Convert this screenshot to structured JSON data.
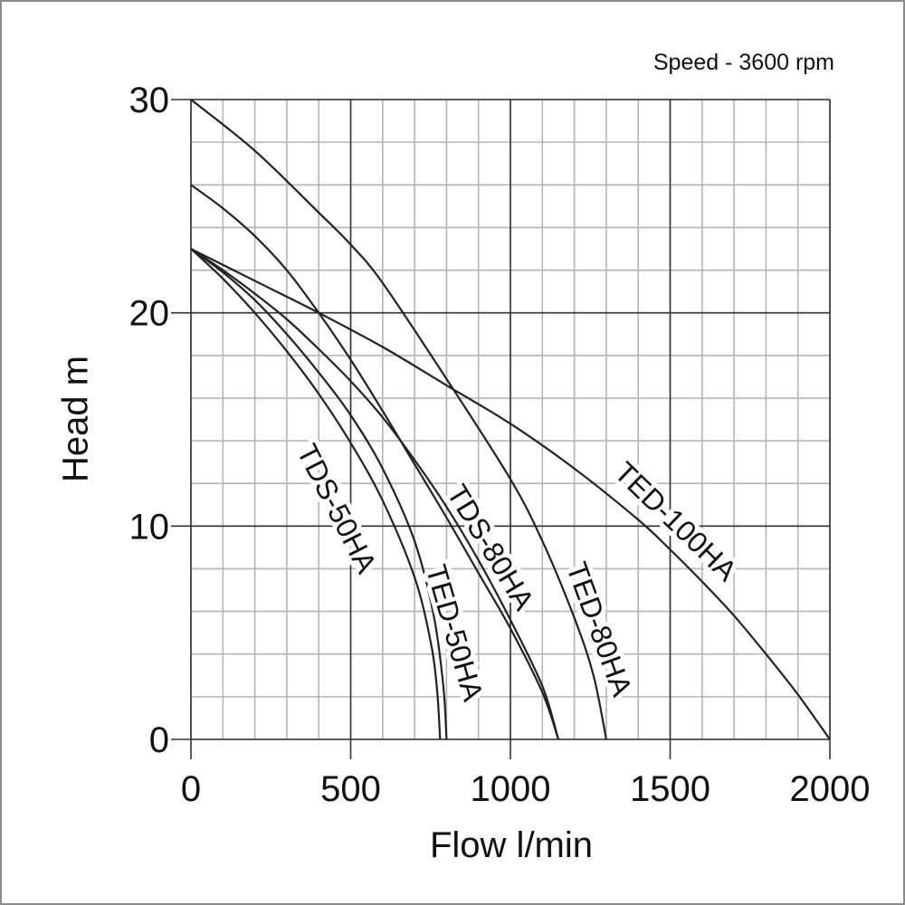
{
  "chart_data": {
    "type": "line",
    "title": "Speed - 3600 rpm",
    "xlabel": "Flow l/min",
    "ylabel": "Head m",
    "xlim": [
      0,
      2000
    ],
    "ylim": [
      0,
      30
    ],
    "x_ticks": [
      0,
      500,
      1000,
      1500,
      2000
    ],
    "y_ticks": [
      0,
      10,
      20,
      30
    ],
    "grid": {
      "minor_x_step": 100,
      "minor_y_step": 2,
      "major_x_step": 500,
      "major_y_step": 10
    },
    "legend": "inline curve labels",
    "series": [
      {
        "name": "TDS-50HA",
        "points": [
          [
            0,
            23
          ],
          [
            100,
            21.6
          ],
          [
            200,
            20.0
          ],
          [
            300,
            18.2
          ],
          [
            400,
            16.2
          ],
          [
            500,
            13.9
          ],
          [
            600,
            11.2
          ],
          [
            700,
            7.6
          ],
          [
            750,
            4.6
          ],
          [
            770,
            2.4
          ],
          [
            780,
            0
          ]
        ],
        "label_pos": {
          "x": 370,
          "y": 13.0,
          "angle": 62
        }
      },
      {
        "name": "TED-50HA",
        "points": [
          [
            0,
            23
          ],
          [
            100,
            21.9
          ],
          [
            200,
            20.6
          ],
          [
            300,
            19.0
          ],
          [
            400,
            17.2
          ],
          [
            500,
            15.2
          ],
          [
            600,
            12.7
          ],
          [
            700,
            9.3
          ],
          [
            760,
            5.8
          ],
          [
            790,
            2.5
          ],
          [
            800,
            0
          ]
        ],
        "label_pos": {
          "x": 850,
          "y": 5.5,
          "angle": 74
        }
      },
      {
        "name": "TDS-80HA",
        "points": [
          [
            0,
            23
          ],
          [
            100,
            22.0
          ],
          [
            200,
            20.9
          ],
          [
            300,
            19.7
          ],
          [
            400,
            18.3
          ],
          [
            500,
            16.8
          ],
          [
            600,
            15.1
          ],
          [
            700,
            13.1
          ],
          [
            800,
            10.9
          ],
          [
            900,
            8.4
          ],
          [
            1000,
            5.6
          ],
          [
            1100,
            2.5
          ],
          [
            1150,
            0
          ]
        ],
        "label_pos": {
          "x": 1020,
          "y": 9.5,
          "angle": 60
        }
      },
      {
        "name": "TED-80HA",
        "points": [
          [
            0,
            26
          ],
          [
            100,
            25.0
          ],
          [
            200,
            23.8
          ],
          [
            300,
            22.2
          ],
          [
            400,
            20.2
          ],
          [
            500,
            18.0
          ],
          [
            600,
            15.7
          ],
          [
            700,
            13.3
          ],
          [
            800,
            10.9
          ],
          [
            900,
            8.3
          ],
          [
            1000,
            5.6
          ],
          [
            1100,
            2.9
          ],
          [
            1200,
            1.2
          ],
          [
            1150,
            0
          ]
        ],
        "label_pos": {
          "x": 1360,
          "y": 7.2,
          "angle": 70
        }
      },
      {
        "name": "TED-100HA",
        "points": [
          [
            0,
            23
          ],
          [
            200,
            21.5
          ],
          [
            400,
            20.0
          ],
          [
            600,
            18.4
          ],
          [
            800,
            16.6
          ],
          [
            1000,
            14.8
          ],
          [
            1200,
            12.7
          ],
          [
            1400,
            10.3
          ],
          [
            1500,
            8.9
          ],
          [
            1600,
            7.4
          ],
          [
            1700,
            5.8
          ],
          [
            1800,
            4.0
          ],
          [
            1900,
            2.1
          ],
          [
            2000,
            0
          ]
        ],
        "label_pos": {
          "x": 1690,
          "y": 10.8,
          "angle": 45
        }
      }
    ],
    "extra_curve_note": "Top curve starting at 30 m (0 l/min) to ~1300 l/min",
    "top_curve": {
      "name": "TED-80HA-top",
      "points": [
        [
          0,
          30
        ],
        [
          200,
          27.6
        ],
        [
          400,
          24.7
        ],
        [
          500,
          23.2
        ],
        [
          600,
          21.4
        ],
        [
          800,
          16.9
        ],
        [
          1000,
          12.2
        ],
        [
          1100,
          9.3
        ],
        [
          1200,
          5.7
        ],
        [
          1260,
          3.0
        ],
        [
          1300,
          0
        ]
      ]
    }
  },
  "labels": {
    "speed": "Speed - 3600 rpm",
    "x_axis": "Flow l/min",
    "y_axis": "Head m",
    "x_ticks": [
      "0",
      "500",
      "1000",
      "1500",
      "2000"
    ],
    "y_ticks": [
      "30",
      "20",
      "10",
      "0"
    ],
    "curves": {
      "tds50": "TDS-50HA",
      "ted50": "TED-50HA",
      "tds80": "TDS-80HA",
      "ted80": "TED-80HA",
      "ted100": "TED-100HA"
    }
  }
}
